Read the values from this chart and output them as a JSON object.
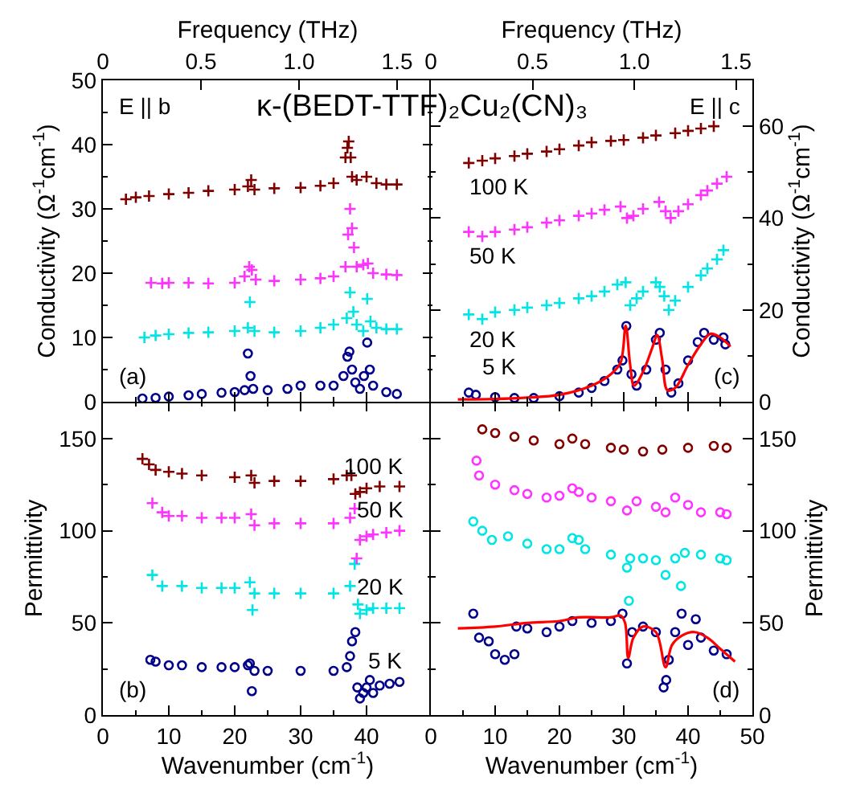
{
  "chart_data": [
    {
      "type": "scatter",
      "title": "κ-(BEDT-TTF)₂Cu₂(CN)₃",
      "ylabel": "Conductivity (Ω$^{-1}$cm$^{-1}$)",
      "x2label": "Frequency (THz)",
      "xlim": [
        0,
        50
      ],
      "xticks": [
        0,
        10,
        20,
        30,
        40
      ],
      "x2lim": [
        0,
        1.68
      ],
      "x2ticks": [
        0,
        0.5,
        {
          "value": 1,
          "label": "1.0"
        },
        1.5
      ],
      "ylim": [
        0,
        50
      ],
      "yticks": [
        0,
        10,
        20,
        30,
        40,
        50
      ],
      "tick_labels": "y",
      "series": [
        {
          "color": "#00008b",
          "marker": "circle",
          "x": [
            6,
            8,
            10,
            13,
            15,
            18,
            20,
            21.5,
            22,
            22.4,
            22.8,
            25,
            28,
            30,
            33,
            35,
            36.5,
            37.1,
            37.4,
            37.8,
            38.3,
            39,
            39.6,
            40.1,
            40.5,
            41,
            43,
            44.6
          ],
          "values": [
            0.5,
            0.6,
            0.8,
            1,
            1.2,
            1.4,
            1.5,
            1.8,
            7.5,
            4,
            2,
            1.8,
            2,
            2.5,
            2.5,
            2.5,
            4,
            7,
            7.8,
            5,
            3,
            2,
            4,
            9.2,
            5,
            2.5,
            1.5,
            1.2
          ]
        },
        {
          "color": "#00e5e5",
          "marker": "cross",
          "x": [
            6.3,
            8,
            10,
            13,
            16,
            20,
            22,
            22.3,
            23,
            26,
            30,
            33,
            35,
            37,
            37.5,
            38,
            38.5,
            39.5,
            40.1,
            40.6,
            41.5,
            43,
            44.6
          ],
          "values": [
            10,
            10.3,
            10.5,
            10.7,
            10.8,
            11,
            11.5,
            15.5,
            11,
            10.8,
            11,
            11.5,
            12,
            13,
            17,
            14,
            12,
            11,
            16,
            12.5,
            11.5,
            11.3,
            11.3
          ]
        },
        {
          "color": "#ff33ff",
          "marker": "cross",
          "x": [
            7.3,
            9,
            10,
            13,
            16,
            20,
            21.5,
            22.2,
            22.6,
            23.2,
            26,
            30,
            33,
            35,
            36.8,
            37.2,
            37.5,
            37.8,
            38.1,
            38.5,
            39.5,
            40.2,
            41,
            43,
            44.6
          ],
          "values": [
            18.5,
            18.4,
            18.5,
            18.5,
            18.4,
            18.5,
            19.5,
            21,
            20.5,
            19,
            18.8,
            19,
            19.2,
            19.5,
            21,
            26,
            30,
            27,
            24,
            21,
            21.3,
            21.5,
            20,
            19.8,
            19.7
          ]
        },
        {
          "color": "#800000",
          "marker": "cross",
          "x": [
            3.5,
            5,
            7,
            10,
            13,
            16,
            20,
            22,
            22.5,
            23,
            26,
            30,
            33,
            35,
            36.8,
            37.1,
            37.3,
            37.6,
            37.8,
            38.5,
            40,
            41.5,
            43,
            44.6
          ],
          "values": [
            31.5,
            31.8,
            32,
            32.3,
            32.5,
            32.8,
            33,
            33.5,
            34.5,
            33,
            33.2,
            33.3,
            33.6,
            34,
            38,
            39.5,
            40.5,
            38,
            35,
            34.5,
            35,
            34,
            33.8,
            33.8
          ]
        }
      ],
      "annotations": [
        "E || b",
        "(a)"
      ]
    },
    {
      "type": "scatter",
      "ylabel": "Conductivity (Ω$^{-1}$cm$^{-1}$)",
      "x2label": "Frequency (THz)",
      "xlim": [
        0,
        50
      ],
      "xticks": [
        0,
        10,
        20,
        30,
        40,
        50
      ],
      "x2lim": [
        0,
        1.58
      ],
      "x2ticks": [
        0,
        0.5,
        {
          "value": 1,
          "label": "1.0"
        },
        1.5
      ],
      "ylim": [
        0,
        70
      ],
      "yticks": [
        0,
        20,
        40,
        60
      ],
      "tick_labels": "y",
      "series": [
        {
          "name": "5 K",
          "color": "#00008b",
          "marker": "circle",
          "x": [
            5.9,
            7,
            10,
            13,
            16,
            20,
            23,
            25,
            27,
            29,
            29.8,
            30.4,
            31.2,
            32,
            33.5,
            35,
            35.6,
            36.5,
            37.4,
            38.5,
            40,
            41.5,
            42.5,
            44,
            45.5,
            45.8
          ],
          "values": [
            2,
            1.5,
            1,
            0.8,
            0.8,
            1.2,
            2,
            3,
            4.5,
            7,
            9,
            16.5,
            6,
            3.5,
            7,
            13.5,
            15,
            7,
            2,
            4,
            9,
            13,
            15,
            13.5,
            14,
            12.5
          ]
        },
        {
          "name": "20 K",
          "color": "#00e5e5",
          "marker": "cross",
          "x": [
            5.9,
            8,
            10,
            13,
            15,
            18,
            20,
            23,
            25,
            27,
            29,
            30.3,
            31,
            32,
            33,
            35,
            35.6,
            36.3,
            37,
            38,
            40,
            42,
            43,
            44.5,
            45.5
          ],
          "values": [
            19,
            18,
            19.5,
            20,
            20.5,
            21,
            21.5,
            22.5,
            23,
            24,
            25.5,
            26,
            21,
            22.5,
            24,
            26,
            25,
            23,
            20,
            22,
            25,
            27.5,
            29,
            31,
            33
          ]
        },
        {
          "name": "50 K",
          "color": "#ff33ff",
          "marker": "cross",
          "x": [
            5.9,
            8,
            10,
            13,
            15,
            18,
            20,
            23,
            25,
            27,
            29.5,
            30.5,
            31.5,
            33,
            35.5,
            36.5,
            37.3,
            38.5,
            40,
            42,
            43,
            44.5,
            46
          ],
          "values": [
            37,
            36,
            37,
            37.5,
            38,
            39,
            39.5,
            40.5,
            41,
            41.8,
            42.5,
            40,
            40.5,
            42,
            43.5,
            41.5,
            40,
            41.5,
            43,
            45,
            46,
            47.5,
            49
          ]
        },
        {
          "name": "100 K",
          "color": "#800000",
          "marker": "cross",
          "x": [
            5.9,
            8,
            10,
            13,
            15,
            18,
            20,
            23,
            25,
            28,
            30,
            33,
            35,
            38,
            40,
            42,
            44
          ],
          "values": [
            52,
            52.5,
            53,
            53.5,
            54,
            54.5,
            55,
            55.8,
            56.5,
            56.8,
            57,
            57.5,
            58,
            58.5,
            59,
            59.5,
            60
          ]
        },
        {
          "type": "line",
          "color": "#ff0000",
          "x": [
            4.2,
            10,
            15,
            20,
            25,
            28,
            29.5,
            30.3,
            31,
            31.6,
            33,
            34.5,
            35.2,
            36,
            36.8,
            38,
            40,
            42,
            43.5,
            45,
            46.6
          ],
          "values": [
            0.5,
            0.6,
            0.9,
            1.5,
            3.5,
            6,
            8.5,
            16.5,
            8,
            3.5,
            6.5,
            12,
            14.5,
            9,
            2.5,
            3,
            8,
            12.5,
            14.8,
            14,
            12
          ]
        }
      ],
      "annotations": [
        "E || c",
        "(c)"
      ]
    },
    {
      "type": "scatter",
      "xlabel": "Wavenumber (cm$^{-1}$)",
      "ylabel": "Permittivity",
      "xlim": [
        0,
        50
      ],
      "xticks": [
        0,
        10,
        20,
        30,
        40
      ],
      "ylim": [
        0,
        170
      ],
      "yticks": [
        0,
        50,
        100,
        150
      ],
      "series": [
        {
          "name": "5 K",
          "color": "#00008b",
          "marker": "circle",
          "x": [
            7.2,
            8,
            10,
            12,
            15,
            18,
            20,
            22,
            22.3,
            22.6,
            23,
            25,
            30,
            35,
            37,
            37.5,
            37.8,
            38.3,
            38.6,
            39,
            39.5,
            40,
            40.5,
            41,
            42,
            43.5,
            45
          ],
          "values": [
            30,
            29,
            27,
            27,
            26,
            26,
            26,
            27,
            28,
            13,
            24,
            24,
            24,
            24,
            26,
            32,
            40,
            45,
            15,
            9,
            12,
            15,
            19,
            12,
            16,
            17,
            18
          ]
        },
        {
          "name": "20 K",
          "color": "#00e5e5",
          "marker": "cross",
          "x": [
            7.5,
            9,
            12,
            15,
            18,
            20,
            22.3,
            22.7,
            23,
            26,
            30,
            35,
            37.5,
            38.2,
            38.7,
            39,
            40,
            41,
            43,
            45
          ],
          "values": [
            76,
            70,
            70,
            69,
            69,
            69,
            72,
            57,
            66,
            66,
            66,
            66,
            70,
            82,
            60,
            55,
            57,
            58,
            58,
            58
          ]
        },
        {
          "name": "50 K",
          "color": "#ff33ff",
          "marker": "cross",
          "x": [
            7.5,
            9,
            10,
            12,
            15,
            18,
            20,
            22.5,
            23,
            26,
            30,
            35,
            37.5,
            38.2,
            38.5,
            39,
            40,
            41,
            43,
            45
          ],
          "values": [
            115,
            110,
            108,
            108,
            107,
            107,
            107,
            109,
            103,
            104,
            104,
            104,
            107,
            112,
            85,
            95,
            97,
            98,
            99,
            100
          ]
        },
        {
          "name": "100 K",
          "color": "#800000",
          "marker": "cross",
          "x": [
            6,
            7,
            8,
            10,
            12,
            15,
            20,
            22.5,
            23,
            26,
            30,
            35,
            37,
            37.7,
            38.3,
            39,
            40,
            42,
            45
          ],
          "values": [
            139,
            136,
            133,
            132,
            131,
            130,
            129,
            130,
            126,
            127,
            127,
            128,
            130,
            130,
            120,
            121,
            123,
            124,
            124
          ]
        }
      ],
      "annotations": [
        "(b)"
      ]
    },
    {
      "type": "scatter",
      "xlabel": "Wavenumber (cm$^{-1}$)",
      "ylabel": "Permittivity",
      "xlim": [
        0,
        50
      ],
      "xticks": [
        0,
        10,
        20,
        30,
        40,
        50
      ],
      "ylim": [
        0,
        170
      ],
      "yticks": [
        0,
        50,
        100,
        150
      ],
      "series": [
        {
          "color": "#00008b",
          "marker": "circle",
          "x": [
            6.6,
            7.5,
            9,
            10,
            11.5,
            13,
            13.3,
            15,
            18,
            20,
            22,
            25,
            28,
            29.8,
            30.5,
            31.3,
            33,
            35,
            36.2,
            36.6,
            37,
            38,
            39,
            40,
            41.2,
            42,
            44,
            46
          ],
          "values": [
            55,
            42,
            40,
            33,
            30,
            33,
            48,
            47,
            45,
            48,
            51,
            50,
            51,
            55,
            28,
            45,
            48,
            45,
            15,
            19,
            30,
            45,
            55,
            38,
            52,
            42,
            35,
            33
          ]
        },
        {
          "color": "#00e5e5",
          "marker": "circle",
          "x": [
            6.6,
            8,
            9.5,
            12,
            15,
            18,
            20,
            22,
            23,
            24,
            28,
            30.5,
            30.8,
            31,
            33,
            35,
            36.5,
            38,
            38.9,
            39.5,
            42,
            45,
            46
          ],
          "values": [
            105,
            100,
            95,
            97,
            93,
            90,
            90,
            96,
            95,
            90,
            87,
            80,
            62,
            85,
            85,
            84,
            76,
            85,
            70,
            88,
            87,
            85,
            84
          ]
        },
        {
          "color": "#ff33ff",
          "marker": "circle",
          "x": [
            7.1,
            7.5,
            10,
            13,
            15,
            18,
            20,
            22,
            23,
            25,
            28,
            30.5,
            32,
            35,
            36.5,
            38,
            40,
            42,
            45,
            46
          ],
          "values": [
            138,
            130,
            125,
            122,
            120,
            118,
            119,
            123,
            121,
            118,
            116,
            111,
            116,
            113,
            110,
            118,
            114,
            110,
            110,
            109
          ]
        },
        {
          "color": "#800000",
          "marker": "circle",
          "x": [
            8,
            10,
            13,
            16,
            20,
            22,
            24,
            28,
            30,
            33,
            36,
            40,
            44,
            46
          ],
          "values": [
            155,
            153,
            151,
            149,
            147,
            150,
            147,
            145,
            144,
            143,
            144,
            145,
            146,
            145
          ]
        },
        {
          "type": "line",
          "color": "#ff0000",
          "x": [
            4.2,
            10,
            15,
            20,
            23,
            28,
            29.5,
            30.2,
            30.7,
            31.5,
            33,
            35,
            36.5,
            37.5,
            39,
            41,
            43,
            45,
            47.3
          ],
          "values": [
            47,
            48,
            50,
            51,
            53,
            53,
            54,
            50,
            31,
            42,
            48,
            45,
            26,
            38,
            43,
            45,
            42,
            36,
            29
          ]
        }
      ],
      "annotations": [
        "(d)"
      ]
    }
  ]
}
